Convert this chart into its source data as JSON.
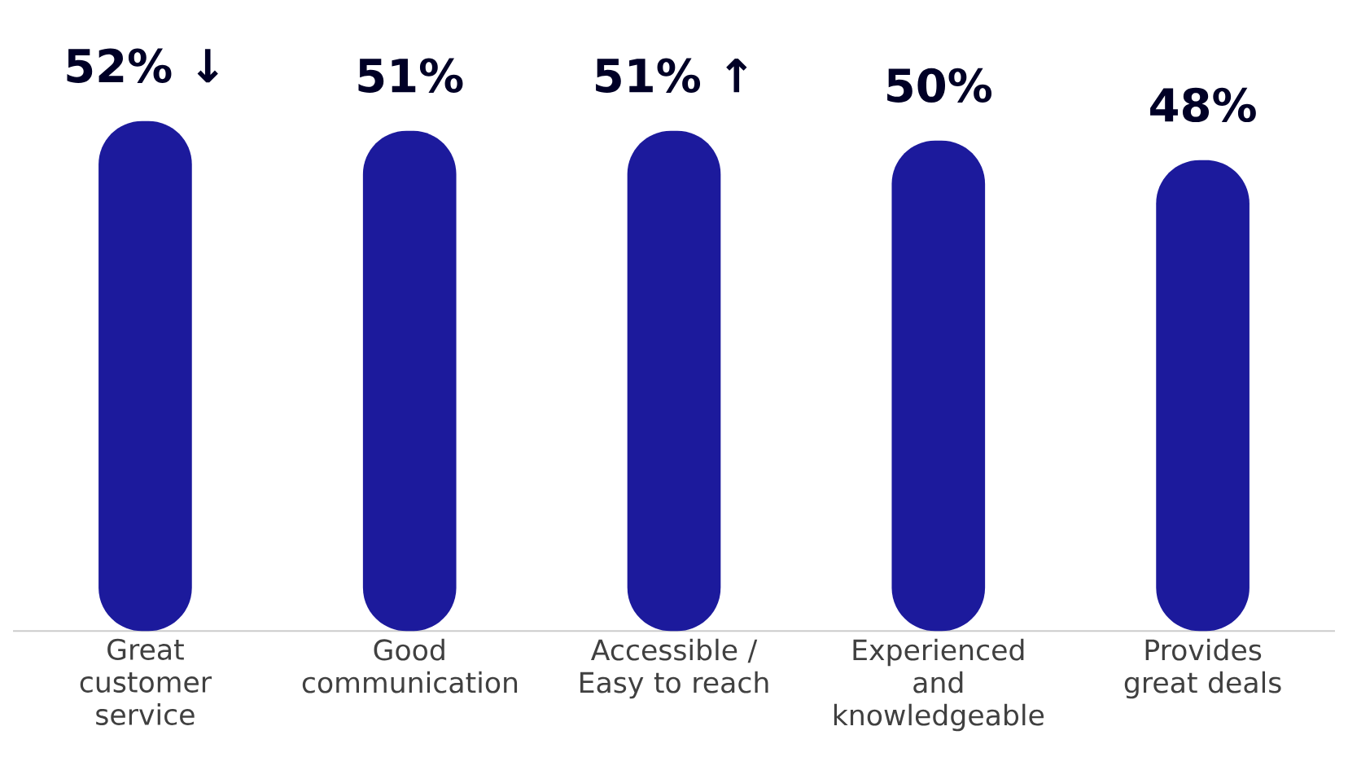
{
  "chart_data": {
    "type": "bar",
    "categories": [
      "Great customer service",
      "Good communication",
      "Accessible / Easy to reach",
      "Experienced and knowledgeable",
      "Provides great deals"
    ],
    "values": [
      52,
      51,
      51,
      50,
      48
    ],
    "value_labels": [
      "52% ↓",
      "51%",
      "51% ↑",
      "50%",
      "48%"
    ],
    "color": "#1c1a9c"
  }
}
